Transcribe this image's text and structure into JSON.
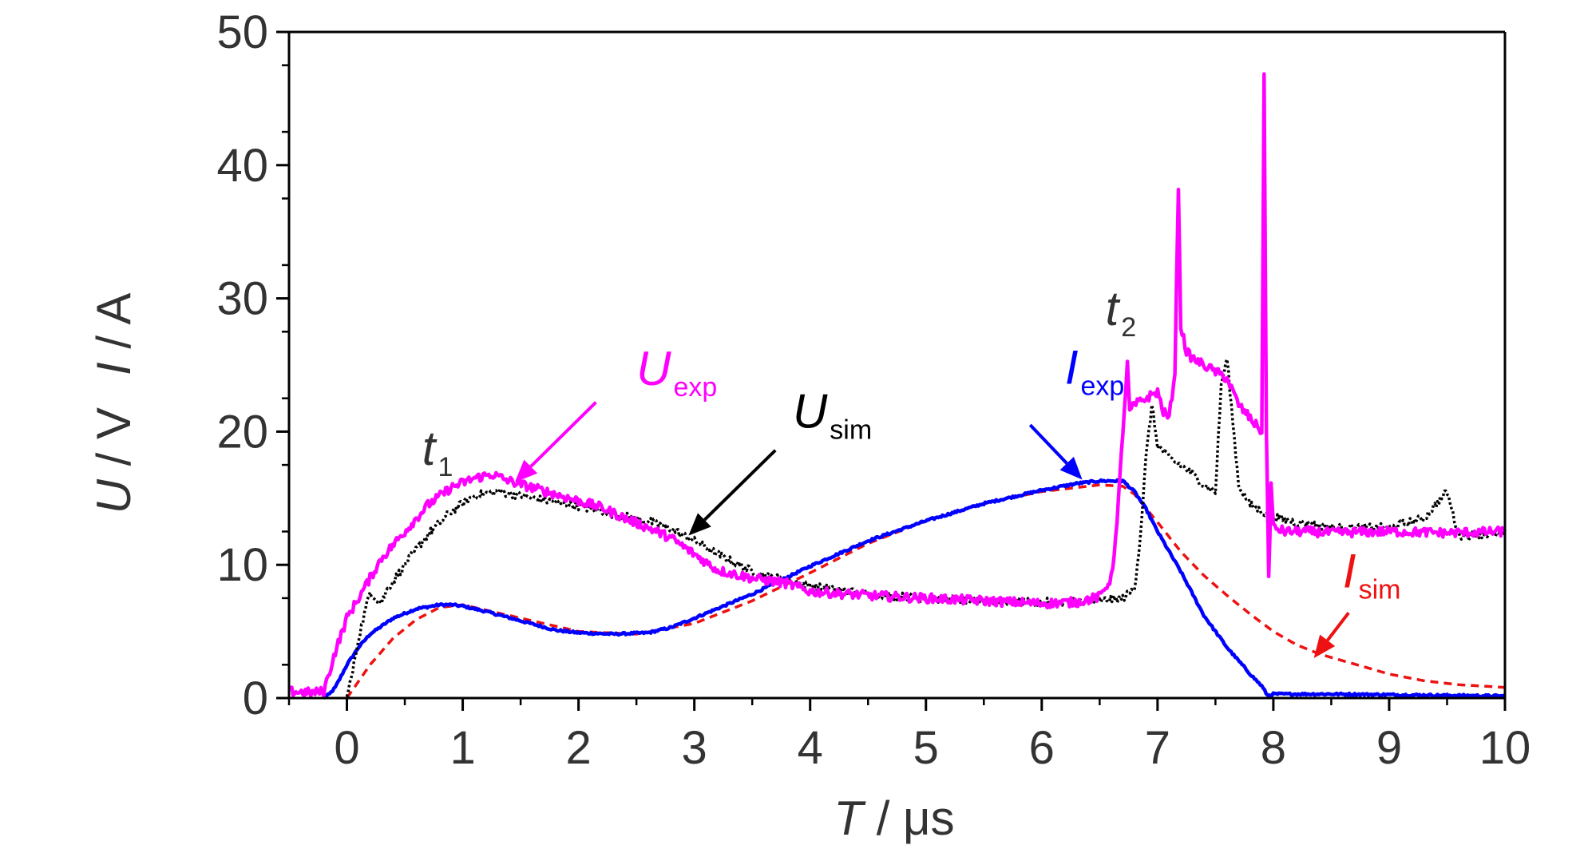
{
  "chart_data": {
    "type": "line",
    "xlabel": {
      "var": "T",
      "sep": " / ",
      "unit": "μs"
    },
    "ylabel": {
      "part1_var": "U",
      "part1_unit": " / V",
      "part2_var": "I",
      "part2_unit": " / A"
    },
    "xlim": [
      -0.5,
      10
    ],
    "ylim": [
      0,
      50
    ],
    "x_ticks": [
      "0",
      "1",
      "2",
      "3",
      "4",
      "5",
      "6",
      "7",
      "8",
      "9",
      "10"
    ],
    "y_ticks": [
      "0",
      "10",
      "20",
      "30",
      "40",
      "50"
    ],
    "grid": false,
    "legend": "none",
    "colors": {
      "U_exp": "#ff00ff",
      "U_sim": "#000000",
      "I_exp": "#0000ff",
      "I_sim": "#ee1111",
      "axis": "#000000",
      "text": "#333333"
    },
    "annotations": [
      {
        "id": "U_exp",
        "main": "U",
        "sub": "exp",
        "color": "#ff00ff",
        "at": [
          2.5,
          23.5
        ],
        "arrow_from": [
          2.15,
          22.2
        ],
        "arrow_to": [
          1.45,
          16.2
        ]
      },
      {
        "id": "U_sim",
        "main": "U",
        "sub": "sim",
        "color": "#000000",
        "at": [
          3.85,
          20.3
        ],
        "arrow_from": [
          3.7,
          18.6
        ],
        "arrow_to": [
          2.95,
          12.2
        ]
      },
      {
        "id": "I_exp",
        "main": "I",
        "sub": "exp",
        "color": "#0000ff",
        "at": [
          6.2,
          23.6
        ],
        "arrow_from": [
          5.9,
          20.5
        ],
        "arrow_to": [
          6.35,
          16.4
        ]
      },
      {
        "id": "I_sim",
        "main": "I",
        "sub": "sim",
        "color": "#ee1111",
        "at": [
          8.6,
          8.3
        ],
        "arrow_from": [
          8.65,
          6.4
        ],
        "arrow_to": [
          8.35,
          3.0
        ]
      },
      {
        "id": "t1",
        "main": "t",
        "sub": "1",
        "color": "#333333",
        "at": [
          0.65,
          17.5
        ],
        "arrow_from": null,
        "arrow_to": null
      },
      {
        "id": "t2",
        "main": "t",
        "sub": "2",
        "color": "#333333",
        "at": [
          6.55,
          28.0
        ],
        "arrow_from": null,
        "arrow_to": null
      }
    ],
    "series": [
      {
        "name": "U_exp",
        "color": "#ff00ff",
        "style": "solid",
        "noise": 0.35,
        "x": [
          -0.5,
          -0.3,
          -0.2,
          -0.1,
          0.0,
          0.1,
          0.2,
          0.3,
          0.5,
          0.7,
          0.9,
          1.1,
          1.25,
          1.4,
          1.6,
          1.8,
          2.0,
          2.2,
          2.4,
          2.6,
          2.8,
          3.0,
          3.2,
          3.5,
          3.8,
          4.0,
          4.5,
          5.0,
          5.5,
          6.0,
          6.3,
          6.5,
          6.6,
          6.65,
          6.7,
          6.74,
          6.76,
          6.8,
          6.9,
          7.0,
          7.05,
          7.1,
          7.15,
          7.18,
          7.2,
          7.25,
          7.3,
          7.4,
          7.5,
          7.6,
          7.7,
          7.8,
          7.9,
          7.92,
          7.94,
          7.96,
          7.98,
          8.0,
          8.1,
          8.3,
          8.5,
          9.0,
          9.5,
          10.0
        ],
        "y": [
          0.5,
          0.4,
          0.5,
          3.5,
          6.0,
          7.5,
          9.0,
          10.5,
          12.5,
          14.5,
          15.8,
          16.5,
          16.8,
          16.3,
          15.8,
          15.3,
          14.8,
          14.3,
          13.5,
          12.8,
          12.0,
          10.8,
          9.6,
          9.0,
          8.6,
          8.0,
          7.7,
          7.5,
          7.3,
          7.1,
          7.2,
          7.6,
          9.0,
          13.0,
          20.0,
          25.0,
          21.5,
          22.0,
          22.5,
          23.0,
          21.5,
          21.0,
          24.5,
          38.5,
          28.0,
          26.0,
          25.5,
          25.0,
          24.5,
          24.0,
          22.0,
          21.0,
          20.0,
          46.5,
          20.0,
          9.0,
          16.0,
          12.8,
          12.5,
          12.5,
          12.4,
          12.5,
          12.4,
          12.5
        ]
      },
      {
        "name": "U_sim",
        "color": "#000000",
        "style": "dotted",
        "noise": 0.3,
        "x": [
          0.0,
          0.05,
          0.1,
          0.2,
          0.25,
          0.3,
          0.35,
          0.4,
          0.5,
          0.7,
          0.9,
          1.1,
          1.3,
          1.5,
          1.8,
          2.0,
          2.3,
          2.6,
          2.8,
          3.0,
          3.2,
          3.5,
          3.8,
          4.0,
          4.5,
          5.0,
          5.5,
          6.0,
          6.5,
          6.7,
          6.8,
          6.85,
          6.9,
          6.95,
          7.0,
          7.1,
          7.2,
          7.3,
          7.4,
          7.5,
          7.55,
          7.6,
          7.7,
          7.8,
          7.9,
          8.0,
          8.2,
          8.5,
          9.0,
          9.3,
          9.5,
          9.6,
          9.8,
          10.0
        ],
        "y": [
          0.0,
          2.0,
          4.5,
          8.0,
          7.5,
          7.2,
          8.2,
          8.8,
          10.0,
          12.3,
          14.0,
          15.2,
          15.5,
          15.2,
          14.7,
          14.4,
          13.8,
          13.3,
          12.7,
          11.8,
          10.8,
          9.5,
          8.8,
          8.4,
          7.8,
          7.5,
          7.3,
          7.2,
          7.3,
          7.5,
          8.2,
          12.0,
          18.0,
          22.0,
          19.0,
          18.0,
          17.5,
          16.8,
          16.0,
          15.5,
          23.5,
          25.5,
          16.0,
          14.5,
          14.0,
          13.6,
          13.2,
          12.8,
          12.8,
          13.5,
          15.5,
          12.2,
          12.3,
          12.3
        ]
      },
      {
        "name": "I_exp",
        "color": "#0000ff",
        "style": "solid",
        "noise": 0.08,
        "x": [
          -0.2,
          -0.15,
          -0.1,
          0.0,
          0.1,
          0.2,
          0.4,
          0.6,
          0.8,
          0.9,
          1.0,
          1.2,
          1.5,
          1.8,
          2.0,
          2.3,
          2.6,
          2.8,
          3.0,
          3.5,
          4.0,
          4.5,
          5.0,
          5.5,
          6.0,
          6.3,
          6.5,
          6.7,
          6.8,
          6.9,
          7.0,
          7.2,
          7.4,
          7.6,
          7.8,
          7.9,
          7.95,
          8.0,
          8.5,
          9.0,
          9.5,
          10.0
        ],
        "y": [
          0.0,
          0.3,
          0.8,
          2.5,
          3.8,
          4.8,
          6.0,
          6.7,
          7.0,
          7.0,
          6.9,
          6.5,
          5.8,
          5.1,
          4.9,
          4.8,
          4.9,
          5.3,
          6.0,
          7.8,
          9.9,
          11.8,
          13.3,
          14.6,
          15.6,
          16.1,
          16.3,
          16.3,
          15.5,
          14.2,
          12.5,
          9.5,
          6.2,
          3.8,
          1.8,
          0.9,
          0.2,
          0.3,
          0.3,
          0.25,
          0.2,
          0.15
        ]
      },
      {
        "name": "I_sim",
        "color": "#ee1111",
        "style": "dashed",
        "noise": 0,
        "x": [
          0.0,
          0.2,
          0.4,
          0.6,
          0.8,
          1.0,
          1.5,
          2.0,
          2.5,
          3.0,
          3.5,
          4.0,
          4.5,
          5.0,
          5.5,
          6.0,
          6.5,
          6.7,
          6.8,
          7.0,
          7.2,
          7.4,
          7.6,
          7.8,
          8.0,
          8.2,
          8.4,
          8.6,
          8.8,
          9.0,
          9.3,
          9.6,
          10.0
        ],
        "y": [
          0.0,
          2.5,
          4.5,
          5.9,
          6.8,
          7.0,
          6.0,
          5.0,
          4.8,
          5.6,
          7.3,
          9.4,
          11.6,
          13.3,
          14.6,
          15.5,
          16.0,
          15.9,
          15.3,
          13.2,
          11.0,
          9.2,
          7.7,
          6.3,
          5.0,
          4.0,
          3.3,
          2.8,
          2.3,
          1.8,
          1.3,
          1.0,
          0.8
        ]
      }
    ]
  }
}
